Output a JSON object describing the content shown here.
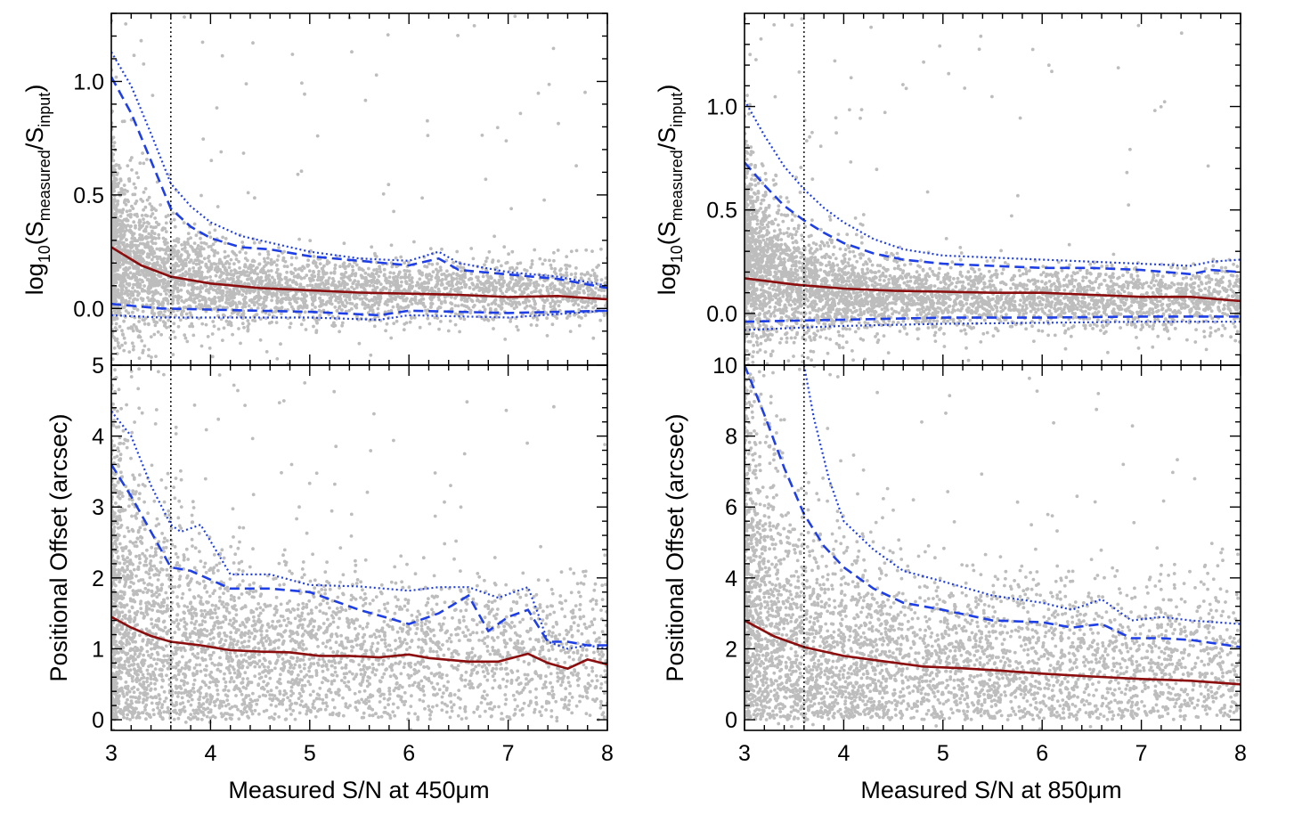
{
  "chart_data": [
    {
      "id": "a",
      "type": "scatter",
      "xlabel": "",
      "ylabel_parts": [
        "log",
        "10",
        "(S",
        "measured",
        "/S",
        "input",
        ")"
      ],
      "xlim": [
        3,
        8
      ],
      "ylim": [
        -0.25,
        1.3
      ],
      "xticks": [
        3,
        4,
        5,
        6,
        7,
        8
      ],
      "yticks": [
        0.0,
        0.5,
        1.0
      ],
      "ytick_labels": [
        "0.0",
        "0.5",
        "1.0"
      ],
      "show_xtick_labels": false,
      "vline_x": 3.6,
      "scatter_model": {
        "center": 0.08,
        "spread": 0.07,
        "amp": 0.55,
        "decay": 0.55,
        "n": 3800
      },
      "series": [
        {
          "name": "median",
          "style": "solid",
          "x": [
            3,
            3.3,
            3.6,
            4.0,
            4.5,
            5.0,
            5.5,
            6.0,
            6.5,
            7.0,
            7.5,
            8.0
          ],
          "y": [
            0.27,
            0.19,
            0.14,
            0.11,
            0.09,
            0.08,
            0.07,
            0.065,
            0.06,
            0.05,
            0.055,
            0.04
          ]
        },
        {
          "name": "upper dashed",
          "style": "dashed",
          "x": [
            3,
            3.2,
            3.4,
            3.6,
            3.8,
            4.0,
            4.3,
            4.6,
            5.0,
            5.5,
            6.0,
            6.3,
            6.5,
            7.0,
            7.5,
            8.0
          ],
          "y": [
            1.02,
            0.86,
            0.65,
            0.44,
            0.36,
            0.31,
            0.27,
            0.26,
            0.23,
            0.21,
            0.19,
            0.22,
            0.17,
            0.15,
            0.13,
            0.09
          ]
        },
        {
          "name": "upper dotted",
          "style": "dotted",
          "x": [
            3,
            3.2,
            3.4,
            3.6,
            3.8,
            4.0,
            4.3,
            4.6,
            5.0,
            5.5,
            6.0,
            6.3,
            6.5,
            7.0,
            7.5,
            8.0
          ],
          "y": [
            1.13,
            0.98,
            0.77,
            0.55,
            0.45,
            0.38,
            0.32,
            0.29,
            0.25,
            0.22,
            0.21,
            0.25,
            0.2,
            0.16,
            0.14,
            0.1
          ]
        },
        {
          "name": "lower dashed",
          "style": "dashed",
          "x": [
            3,
            3.5,
            4.0,
            5.0,
            5.7,
            6.0,
            7.0,
            8.0
          ],
          "y": [
            0.02,
            0.0,
            -0.005,
            -0.015,
            -0.03,
            -0.01,
            -0.02,
            -0.01
          ]
        },
        {
          "name": "lower dotted",
          "style": "dotted",
          "x": [
            3,
            3.5,
            4.0,
            5.0,
            5.7,
            6.0,
            7.0,
            8.0
          ],
          "y": [
            -0.03,
            -0.04,
            -0.04,
            -0.04,
            -0.05,
            -0.03,
            -0.04,
            -0.01
          ]
        }
      ]
    },
    {
      "id": "b",
      "type": "scatter",
      "xlabel": "",
      "ylabel_parts": [
        "log",
        "10",
        "(S",
        "measured",
        "/S",
        "input",
        ")"
      ],
      "xlim": [
        3,
        8
      ],
      "ylim": [
        -0.25,
        1.45
      ],
      "xticks": [
        3,
        4,
        5,
        6,
        7,
        8
      ],
      "yticks": [
        0.0,
        0.5,
        1.0
      ],
      "ytick_labels": [
        "0.0",
        "0.5",
        "1.0"
      ],
      "show_xtick_labels": false,
      "vline_x": 3.6,
      "scatter_model": {
        "center": 0.07,
        "spread": 0.075,
        "amp": 0.55,
        "decay": 0.6,
        "n": 4200
      },
      "series": [
        {
          "name": "median",
          "style": "solid",
          "x": [
            3,
            3.5,
            4.0,
            4.5,
            5.0,
            5.5,
            6.0,
            6.5,
            7.0,
            7.5,
            8.0
          ],
          "y": [
            0.17,
            0.14,
            0.12,
            0.11,
            0.105,
            0.1,
            0.1,
            0.09,
            0.08,
            0.08,
            0.06
          ]
        },
        {
          "name": "upper dashed",
          "style": "dashed",
          "x": [
            3,
            3.2,
            3.4,
            3.6,
            3.8,
            4.0,
            4.3,
            4.6,
            5.0,
            5.5,
            6.0,
            6.5,
            7.0,
            7.5,
            7.7,
            8.0
          ],
          "y": [
            0.73,
            0.62,
            0.52,
            0.45,
            0.39,
            0.34,
            0.29,
            0.26,
            0.24,
            0.23,
            0.22,
            0.22,
            0.21,
            0.19,
            0.21,
            0.2
          ]
        },
        {
          "name": "upper dotted",
          "style": "dotted",
          "x": [
            3,
            3.2,
            3.4,
            3.6,
            3.8,
            4.0,
            4.3,
            4.6,
            5.0,
            5.5,
            6.0,
            6.5,
            7.0,
            7.5,
            7.7,
            8.0
          ],
          "y": [
            1.03,
            0.86,
            0.71,
            0.6,
            0.51,
            0.44,
            0.36,
            0.31,
            0.28,
            0.27,
            0.26,
            0.25,
            0.24,
            0.23,
            0.25,
            0.26
          ]
        },
        {
          "name": "lower dashed",
          "style": "dashed",
          "x": [
            3,
            3.5,
            4.0,
            5.0,
            6.0,
            7.0,
            8.0
          ],
          "y": [
            -0.04,
            -0.035,
            -0.03,
            -0.02,
            -0.02,
            -0.015,
            -0.015
          ]
        },
        {
          "name": "lower dotted",
          "style": "dotted",
          "x": [
            3,
            3.5,
            4.0,
            5.0,
            6.0,
            7.0,
            8.0
          ],
          "y": [
            -0.08,
            -0.07,
            -0.06,
            -0.05,
            -0.045,
            -0.04,
            -0.04
          ]
        }
      ]
    },
    {
      "id": "c",
      "type": "scatter",
      "xlabel": "Measured S/N at 450μm",
      "ylabel": "Positional Offset (arcsec)",
      "xlim": [
        3,
        8
      ],
      "ylim": [
        -0.15,
        5.0
      ],
      "xticks": [
        3,
        4,
        5,
        6,
        7,
        8
      ],
      "xtick_labels": [
        "3",
        "4",
        "5",
        "6",
        "7",
        "8"
      ],
      "yticks": [
        0,
        1,
        2,
        3,
        4,
        5
      ],
      "ytick_labels": [
        "0",
        "1",
        "2",
        "3",
        "4",
        "5"
      ],
      "show_xtick_labels": true,
      "vline_x": 3.6,
      "scatter_model": {
        "center": 0.9,
        "spread": 0.55,
        "amp": 1.6,
        "decay": 0.6,
        "n": 3800
      },
      "series": [
        {
          "name": "median",
          "style": "solid",
          "x": [
            3,
            3.2,
            3.4,
            3.6,
            3.9,
            4.2,
            4.5,
            4.8,
            5.1,
            5.4,
            5.7,
            6.0,
            6.2,
            6.6,
            6.9,
            7.2,
            7.4,
            7.6,
            7.8,
            8.0
          ],
          "y": [
            1.45,
            1.3,
            1.18,
            1.1,
            1.05,
            0.98,
            0.96,
            0.95,
            0.9,
            0.9,
            0.88,
            0.92,
            0.87,
            0.82,
            0.82,
            0.93,
            0.8,
            0.72,
            0.85,
            0.78
          ]
        },
        {
          "name": "upper dashed",
          "style": "dashed",
          "x": [
            3,
            3.2,
            3.4,
            3.6,
            3.8,
            4.2,
            4.6,
            5.0,
            5.5,
            6.0,
            6.3,
            6.6,
            6.8,
            7.0,
            7.2,
            7.4,
            7.6,
            7.8,
            8.0
          ],
          "y": [
            3.6,
            3.15,
            2.65,
            2.15,
            2.1,
            1.85,
            1.85,
            1.8,
            1.55,
            1.35,
            1.5,
            1.75,
            1.25,
            1.45,
            1.55,
            1.1,
            1.1,
            1.05,
            1.05
          ]
        },
        {
          "name": "upper dotted",
          "style": "dotted",
          "x": [
            3,
            3.2,
            3.4,
            3.6,
            3.7,
            3.9,
            4.2,
            4.6,
            5.0,
            5.5,
            6.0,
            6.3,
            6.6,
            6.9,
            7.2,
            7.3,
            7.4,
            7.6,
            7.8,
            8.0
          ],
          "y": [
            4.35,
            4.0,
            3.3,
            2.75,
            2.65,
            2.75,
            2.05,
            2.05,
            1.9,
            1.88,
            1.82,
            1.87,
            1.87,
            1.72,
            1.87,
            1.5,
            1.1,
            1.0,
            1.05,
            1.0
          ]
        }
      ]
    },
    {
      "id": "d",
      "type": "scatter",
      "xlabel": "Measured S/N at 850μm",
      "ylabel": "Positional Offset (arcsec)",
      "xlim": [
        3,
        8
      ],
      "ylim": [
        -0.3,
        10.0
      ],
      "xticks": [
        3,
        4,
        5,
        6,
        7,
        8
      ],
      "xtick_labels": [
        "3",
        "4",
        "5",
        "6",
        "7",
        "8"
      ],
      "yticks": [
        0,
        2,
        4,
        6,
        8,
        10
      ],
      "ytick_labels": [
        "0",
        "2",
        "4",
        "6",
        "8",
        "10"
      ],
      "show_xtick_labels": true,
      "vline_x": 3.6,
      "scatter_model": {
        "center": 1.5,
        "spread": 1.2,
        "amp": 3.5,
        "decay": 0.6,
        "n": 4200
      },
      "series": [
        {
          "name": "median",
          "style": "solid",
          "x": [
            3,
            3.3,
            3.6,
            4.0,
            4.4,
            4.8,
            5.2,
            5.6,
            6.0,
            6.5,
            7.0,
            7.5,
            8.0
          ],
          "y": [
            2.8,
            2.35,
            2.05,
            1.8,
            1.65,
            1.5,
            1.45,
            1.38,
            1.3,
            1.22,
            1.15,
            1.1,
            1.0
          ]
        },
        {
          "name": "upper dashed",
          "style": "dashed",
          "x": [
            3,
            3.2,
            3.4,
            3.6,
            3.8,
            4.0,
            4.3,
            4.6,
            5.0,
            5.5,
            6.0,
            6.3,
            6.6,
            6.9,
            7.2,
            7.5,
            8.0
          ],
          "y": [
            10.0,
            8.6,
            7.1,
            5.8,
            4.9,
            4.3,
            3.7,
            3.3,
            3.1,
            2.8,
            2.75,
            2.6,
            2.7,
            2.3,
            2.3,
            2.25,
            2.05
          ]
        },
        {
          "name": "upper dotted",
          "style": "dotted",
          "x": [
            3.6,
            3.7,
            3.85,
            4.0,
            4.3,
            4.6,
            5.0,
            5.5,
            6.0,
            6.3,
            6.6,
            6.9,
            7.2,
            7.5,
            8.0
          ],
          "y": [
            10.0,
            8.5,
            6.8,
            5.6,
            4.8,
            4.2,
            3.9,
            3.5,
            3.3,
            3.1,
            3.4,
            2.8,
            2.9,
            2.8,
            2.7
          ]
        }
      ]
    }
  ]
}
